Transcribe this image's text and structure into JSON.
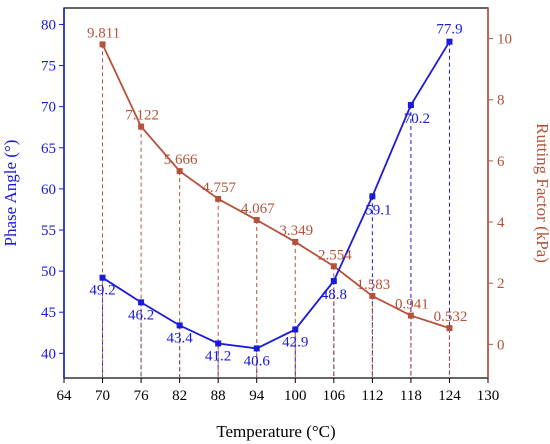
{
  "chart_data": {
    "type": "line",
    "xlabel": "Temperature (°C)",
    "ylabel_left": "Phase Angle (°)",
    "ylabel_right": "Rutting Factor (kPa)",
    "xlim": [
      64,
      130
    ],
    "ylim_left": [
      37,
      82
    ],
    "ylim_right": [
      -1.1,
      11
    ],
    "x_ticks": [
      "64",
      "70",
      "76",
      "82",
      "88",
      "94",
      "100",
      "106",
      "112",
      "118",
      "124",
      "130"
    ],
    "y_left_ticks": [
      "40",
      "45",
      "50",
      "55",
      "60",
      "65",
      "70",
      "75",
      "80"
    ],
    "y_right_ticks": [
      "0",
      "2",
      "4",
      "6",
      "8",
      "10"
    ],
    "grid": false,
    "x": [
      70,
      76,
      82,
      88,
      94,
      100,
      106,
      112,
      118,
      124
    ],
    "series": [
      {
        "axis": "left",
        "color": "#1a1adb",
        "values": [
          49.2,
          46.2,
          43.4,
          41.2,
          40.6,
          42.9,
          48.8,
          59.1,
          70.2,
          77.9
        ],
        "labels": [
          "49.2",
          "46.2",
          "43.4",
          "41.2",
          "40.6",
          "42.9",
          "48.8",
          "59.1",
          "70.2",
          "77.9"
        ]
      },
      {
        "axis": "right",
        "color": "#b5523b",
        "values": [
          9.811,
          7.122,
          5.666,
          4.757,
          4.067,
          3.349,
          2.554,
          1.583,
          0.941,
          0.532
        ],
        "labels": [
          "9.811",
          "7.122",
          "5.666",
          "4.757",
          "4.067",
          "3.349",
          "2.554",
          "1.583",
          "0.941",
          "0.532"
        ]
      }
    ]
  }
}
